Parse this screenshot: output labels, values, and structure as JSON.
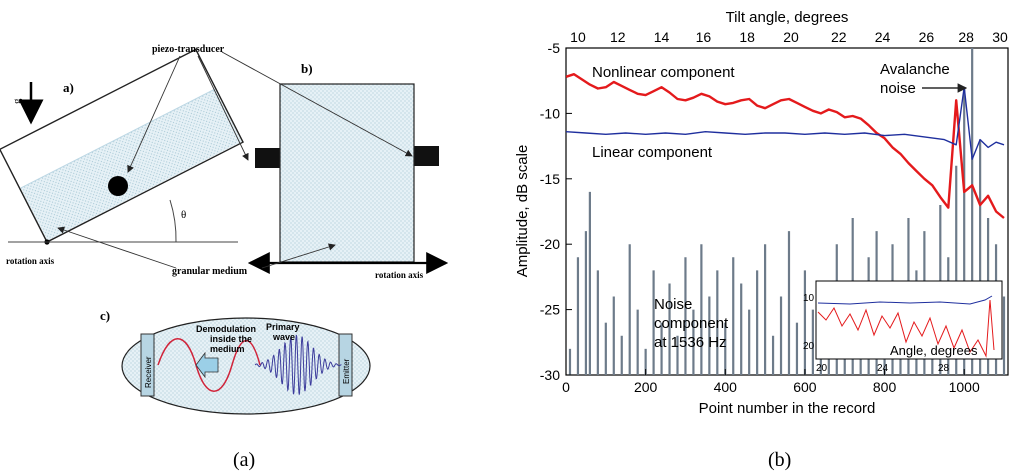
{
  "figure": {
    "left_caption": "(a)",
    "right_caption": "(b)"
  },
  "left_panel": {
    "label_a": "a)",
    "label_b": "b)",
    "label_c": "c)",
    "piezo_transducer": "piezo-transducer",
    "rotation_axis_a": "rotation axis",
    "rotation_axis_b": "rotation axis",
    "granular_medium": "granular medium",
    "theta": "θ",
    "g_vector": "g",
    "demodulation_line1": "Demodulation",
    "demodulation_line2": "inside the",
    "demodulation_line3": "medium",
    "primary_line1": "Primary",
    "primary_line2": "wave",
    "receiver": "Receiver",
    "emitter": "Emitter"
  },
  "chart_data": {
    "type": "line",
    "xlabel": "Point number in the record",
    "ylabel": "Amplitude, dB scale",
    "top_axis_label": "Tilt angle, degrees",
    "xlim": [
      0,
      1110
    ],
    "ylim": [
      -30,
      -5
    ],
    "x_ticks": [
      0,
      200,
      400,
      600,
      800,
      1000
    ],
    "y_ticks": [
      -5,
      -10,
      -15,
      -20,
      -25,
      -30
    ],
    "top_ticks": [
      10,
      12,
      14,
      16,
      18,
      20,
      22,
      24,
      26,
      28,
      30
    ],
    "top_tick_positions": [
      30,
      130,
      240,
      345,
      455,
      565,
      685,
      795,
      905,
      1005,
      1090
    ],
    "annotations": {
      "nonlinear": "Nonlinear component",
      "linear": "Linear component",
      "avalanche1": "Avalanche",
      "avalanche2": "noise",
      "noise1": "Noise",
      "noise2": "component",
      "noise3": "at 1536 Hz"
    },
    "series": [
      {
        "name": "Nonlinear component",
        "color": "#e41a1c",
        "x": [
          0,
          20,
          40,
          60,
          80,
          100,
          120,
          140,
          160,
          180,
          200,
          220,
          240,
          260,
          280,
          300,
          320,
          340,
          360,
          380,
          400,
          420,
          440,
          460,
          480,
          500,
          520,
          540,
          560,
          580,
          600,
          620,
          640,
          660,
          680,
          700,
          720,
          740,
          760,
          780,
          800,
          820,
          840,
          860,
          880,
          900,
          920,
          940,
          960,
          980,
          1000,
          1020,
          1040,
          1060,
          1080,
          1100
        ],
        "y": [
          -7.2,
          -7.0,
          -7.4,
          -7.8,
          -8.1,
          -8.0,
          -7.6,
          -7.9,
          -8.2,
          -8.5,
          -8.6,
          -8.3,
          -8.0,
          -8.4,
          -8.9,
          -9.0,
          -8.8,
          -8.5,
          -8.7,
          -9.1,
          -9.3,
          -9.2,
          -9.0,
          -8.9,
          -9.4,
          -9.6,
          -9.3,
          -9.0,
          -8.9,
          -9.2,
          -9.5,
          -9.8,
          -10.0,
          -9.7,
          -9.9,
          -10.3,
          -10.2,
          -10.4,
          -10.9,
          -11.5,
          -11.9,
          -12.6,
          -13.1,
          -13.8,
          -14.4,
          -15.0,
          -15.5,
          -16.4,
          -17.2,
          -9.0,
          -16.0,
          -15.5,
          -17.0,
          -16.3,
          -17.5,
          -18.0
        ]
      },
      {
        "name": "Linear component",
        "color": "#1f2f9e",
        "x": [
          0,
          50,
          100,
          150,
          200,
          250,
          300,
          350,
          400,
          450,
          500,
          550,
          600,
          650,
          700,
          750,
          800,
          850,
          900,
          950,
          980,
          1000,
          1020,
          1040,
          1060,
          1080,
          1100
        ],
        "y": [
          -11.4,
          -11.5,
          -11.6,
          -11.5,
          -11.6,
          -11.5,
          -11.6,
          -11.4,
          -11.5,
          -11.6,
          -11.5,
          -11.5,
          -11.6,
          -11.5,
          -11.6,
          -11.5,
          -11.7,
          -11.6,
          -11.8,
          -12.0,
          -12.4,
          -8.0,
          -13.5,
          -12.0,
          -12.6,
          -12.2,
          -12.4
        ]
      },
      {
        "name": "Noise component at 1536 Hz",
        "color": "#6d7b8a",
        "x": [
          10,
          30,
          50,
          60,
          80,
          100,
          120,
          140,
          160,
          180,
          200,
          220,
          240,
          260,
          280,
          300,
          320,
          340,
          360,
          380,
          400,
          420,
          440,
          460,
          480,
          500,
          520,
          540,
          560,
          580,
          600,
          620,
          640,
          660,
          680,
          700,
          720,
          740,
          760,
          780,
          800,
          820,
          840,
          860,
          880,
          900,
          920,
          940,
          960,
          980,
          1000,
          1020,
          1040,
          1060,
          1080,
          1100
        ],
        "y": [
          -28,
          -21,
          -19,
          -16,
          -22,
          -26,
          -24,
          -27,
          -20,
          -25,
          -28,
          -22,
          -26,
          -23,
          -27,
          -21,
          -25,
          -20,
          -24,
          -22,
          -26,
          -21,
          -23,
          -25,
          -22,
          -20,
          -27,
          -24,
          -19,
          -26,
          -22,
          -25,
          -23,
          -27,
          -20,
          -24,
          -18,
          -25,
          -21,
          -19,
          -23,
          -20,
          -25,
          -18,
          -22,
          -19,
          -24,
          -17,
          -21,
          -14,
          -8,
          -5,
          -12,
          -18,
          -20,
          -24
        ]
      }
    ],
    "inset": {
      "xlabel": "Angle, degrees",
      "x_ticks": [
        "20",
        "24",
        "28"
      ],
      "y_ticks": [
        "10",
        "20"
      ]
    }
  }
}
